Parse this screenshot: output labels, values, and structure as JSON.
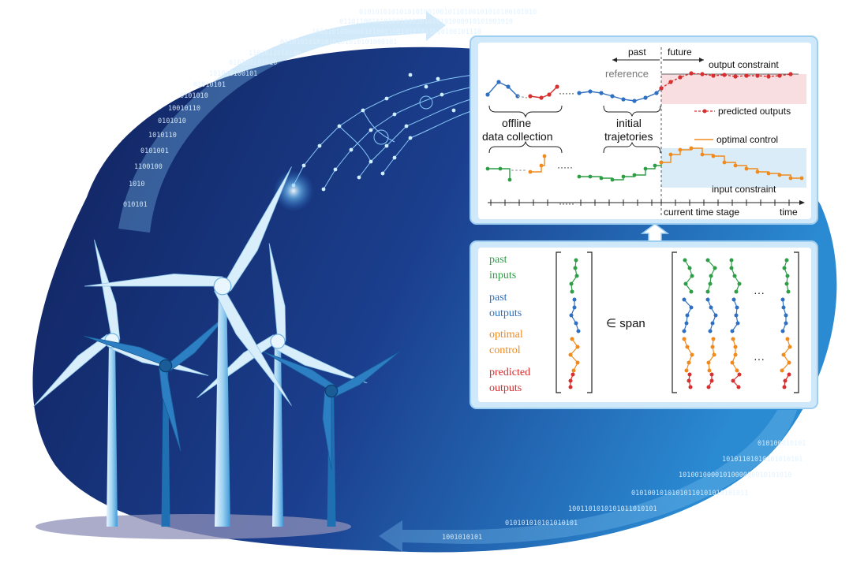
{
  "binary": {
    "top_arrow_rows": [
      "01010101010101010010010110100101010100101010",
      "0110110010101001000101010101000010101001010",
      "101010100000010100110010101011010100101110",
      "01101010101010101010101000101",
      "1101011010100",
      "010100101010",
      "101010100101",
      "01010101",
      "0101010",
      "10010110",
      "0101010",
      "1010110",
      "0101001",
      "1100100",
      "1010",
      "010101"
    ],
    "bottom_arrow_rows": [
      "010100010101",
      "10101101010101010101",
      "1010010000101000000010101010",
      "01010010101010110101010101011",
      "1001101010101011010101",
      "010101010101010101",
      "1001010101"
    ]
  },
  "top_panel": {
    "past_label": "past",
    "future_label": "future",
    "reference_label": "reference",
    "output_constraint_label": "output constraint",
    "predicted_outputs_label": "predicted outputs",
    "offline_label_line1": "offline",
    "offline_label_line2": "data collection",
    "initial_label_line1": "initial",
    "initial_label_line2": "trajetories",
    "optimal_control_label": "optimal control",
    "input_constraint_label": "input constraint",
    "current_time_label": "current time stage",
    "time_label": "time",
    "ellipsis": "·····"
  },
  "bottom_panel": {
    "past_inputs_line1": "past",
    "past_inputs_line2": "inputs",
    "past_outputs_line1": "past",
    "past_outputs_line2": "outputs",
    "optimal_control_line1": "optimal",
    "optimal_control_line2": "control",
    "predicted_outputs_line1": "predicted",
    "predicted_outputs_line2": "outputs",
    "membership": "∈  span",
    "ellipsis": "···"
  },
  "colors": {
    "blob_dark": "#15296b",
    "blob_light": "#2d8fd6",
    "panel_border": "#9ecff0",
    "green": "#2e9e46",
    "blue": "#2f6fc0",
    "orange": "#f08a1c",
    "red": "#d62f2f",
    "turbine_light": "#bfe3f7",
    "turbine_mid": "#5ab4e6",
    "turbine_dark": "#1f6fb3"
  }
}
